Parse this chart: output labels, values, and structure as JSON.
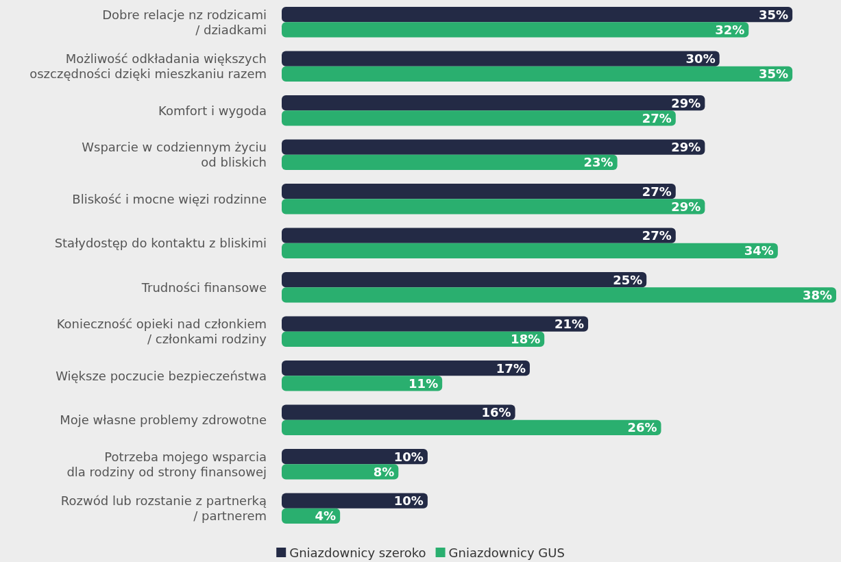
{
  "chart_data": {
    "type": "bar",
    "orientation": "horizontal",
    "data_labels": true,
    "legend": "bottom",
    "categories": [
      "Dobre relacje nz rodzicami\n/ dziadkami",
      "Możliwość odkładania większych\noszczędności dzięki mieszkaniu razem",
      "Komfort i wygoda",
      "Wsparcie w codziennym życiu\nod bliskich",
      "Bliskość i mocne więzi rodzinne",
      "Stałydostęp do kontaktu z bliskimi",
      "Trudności finansowe",
      "Konieczność opieki nad członkiem\n/ członkami rodziny",
      "Większe poczucie bezpieczeństwa",
      "Moje własne problemy zdrowotne",
      "Potrzeba mojego wsparcia\ndla rodziny od strony finansowej",
      "Rozwód lub rozstanie z partnerką\n/ partnerem"
    ],
    "series": [
      {
        "name": "Gniazdownicy szeroko",
        "color": "#232a45",
        "values": [
          35,
          30,
          29,
          29,
          27,
          27,
          25,
          21,
          17,
          16,
          10,
          10
        ],
        "value_labels": [
          "35%",
          "30%",
          "29%",
          "29%",
          "27%",
          "27%",
          "25%",
          "21%",
          "17%",
          "16%",
          "10%",
          "10%"
        ]
      },
      {
        "name": "Gniazdownicy GUS",
        "color": "#2aaf6f",
        "values": [
          32,
          35,
          27,
          23,
          29,
          34,
          38,
          18,
          11,
          26,
          8,
          4
        ],
        "value_labels": [
          "32%",
          "35%",
          "27%",
          "23%",
          "29%",
          "34%",
          "38%",
          "18%",
          "11%",
          "26%",
          "8%",
          "4%"
        ]
      }
    ]
  }
}
